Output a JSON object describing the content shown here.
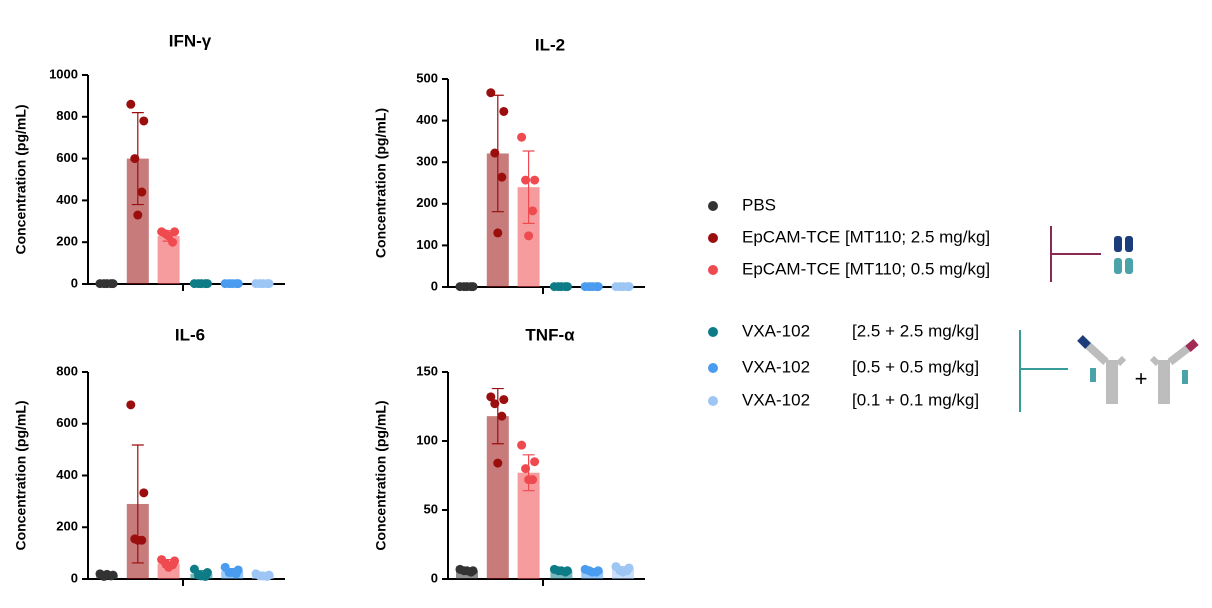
{
  "legend": [
    {
      "name": "PBS",
      "color": "#333333"
    },
    {
      "name": "EpCAM-TCE [MT110; 2.5 mg/kg]",
      "color": "#9b0e0e"
    },
    {
      "name": "EpCAM-TCE [MT110; 0.5 mg/kg]",
      "color": "#ef4a4f"
    },
    {
      "name": "VXA-102",
      "dose": "[2.5 + 2.5 mg/kg]",
      "color": "#0e7c86"
    },
    {
      "name": "VXA-102",
      "dose": "[0.5 + 0.5 mg/kg]",
      "color": "#4a9cf0"
    },
    {
      "name": "VXA-102",
      "dose": "[0.1 + 0.1 mg/kg]",
      "color": "#9ec6f5"
    }
  ],
  "chart_data": [
    {
      "type": "bar",
      "title": "IFN-γ",
      "ylabel": "Concentration (pg/mL)",
      "ylim": [
        0,
        1000
      ],
      "yticks": [
        0,
        200,
        400,
        600,
        800,
        1000
      ],
      "means": [
        2,
        600,
        230,
        2,
        2,
        2
      ],
      "errors": [
        0,
        220,
        25,
        0,
        0,
        0
      ],
      "points": [
        [
          2,
          2,
          2,
          2,
          2
        ],
        [
          860,
          780,
          600,
          440,
          330
        ],
        [
          250,
          250,
          240,
          200,
          230
        ],
        [
          2,
          2,
          2,
          2,
          2
        ],
        [
          2,
          2,
          2,
          2,
          2
        ],
        [
          2,
          2,
          2,
          2,
          2
        ]
      ]
    },
    {
      "type": "bar",
      "title": "IL-2",
      "ylabel": "Concentration (pg/mL)",
      "ylim": [
        0,
        500
      ],
      "yticks": [
        0,
        100,
        200,
        300,
        400,
        500
      ],
      "means": [
        1,
        321,
        240,
        1,
        1,
        1
      ],
      "errors": [
        0,
        140,
        87,
        0,
        0,
        0
      ],
      "points": [
        [
          1,
          1,
          1,
          1,
          1
        ],
        [
          467,
          422,
          322,
          264,
          130
        ],
        [
          360,
          257,
          257,
          183,
          123
        ],
        [
          1,
          1,
          1,
          1,
          1
        ],
        [
          1,
          1,
          1,
          1,
          1
        ],
        [
          1,
          1,
          1,
          1,
          1
        ]
      ]
    },
    {
      "type": "bar",
      "title": "IL-6",
      "ylabel": "Concentration (pg/mL)",
      "ylim": [
        0,
        800
      ],
      "yticks": [
        0,
        200,
        400,
        600,
        800
      ],
      "means": [
        15,
        290,
        60,
        20,
        30,
        15
      ],
      "errors": [
        4,
        228,
        15,
        12,
        10,
        5
      ],
      "points": [
        [
          20,
          15,
          10,
          12,
          18
        ],
        [
          673,
          333,
          155,
          150,
          150
        ],
        [
          75,
          70,
          60,
          55,
          45
        ],
        [
          38,
          25,
          15,
          10,
          12
        ],
        [
          45,
          35,
          25,
          20,
          25
        ],
        [
          20,
          15,
          12,
          10,
          12
        ]
      ]
    },
    {
      "type": "bar",
      "title": "TNF-α",
      "ylabel": "Concentration (pg/mL)",
      "ylim": [
        0,
        150
      ],
      "yticks": [
        0,
        50,
        100,
        150
      ],
      "means": [
        6,
        118,
        77,
        6,
        6,
        7
      ],
      "errors": [
        1,
        20,
        13,
        1,
        1,
        2
      ],
      "points": [
        [
          7,
          6,
          6,
          5,
          6
        ],
        [
          132,
          130,
          127,
          118,
          84
        ],
        [
          97,
          85,
          80,
          72,
          72
        ],
        [
          7,
          6,
          6,
          5,
          6
        ],
        [
          7,
          6,
          6,
          5,
          5
        ],
        [
          9,
          8,
          6,
          6,
          5
        ]
      ]
    }
  ]
}
